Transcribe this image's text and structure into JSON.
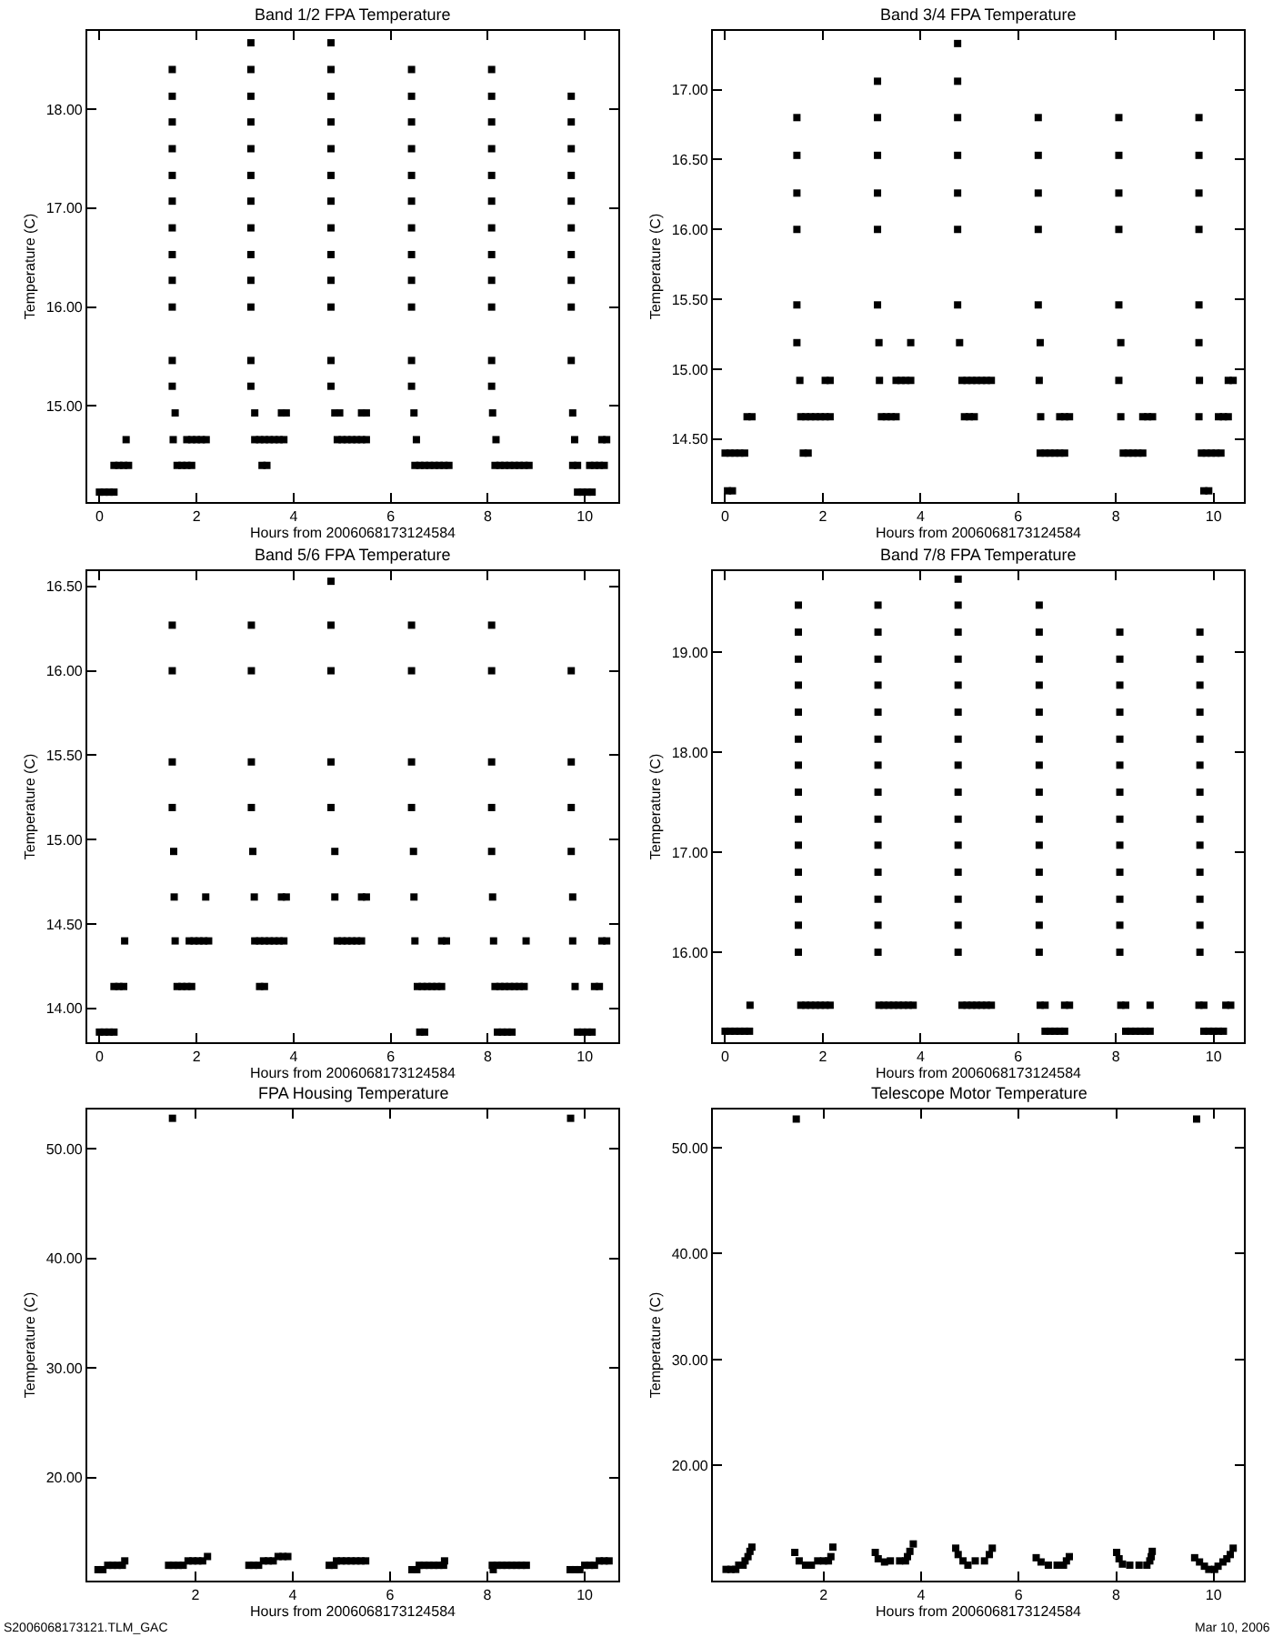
{
  "chart_data": [
    {
      "type": "scatter",
      "title": "Band 1/2 FPA Temperature",
      "xlabel": "Hours from 2006068173124584",
      "ylabel": "Temperature (C)",
      "marker": "square",
      "xlim": [
        -0.25,
        10.69
      ],
      "xticks": [
        0,
        2,
        4,
        6,
        8,
        10
      ],
      "ylim": [
        14.03,
        18.79
      ],
      "yticks": [
        {
          "value": 15,
          "label": "15.00"
        },
        {
          "value": 16,
          "label": "16.00"
        },
        {
          "value": 17,
          "label": "17.00"
        },
        {
          "value": 18,
          "label": "18.00"
        }
      ],
      "series": [
        {
          "color": "#000000",
          "x": [
            0,
            0.1,
            0.2,
            0.3,
            9.85,
            9.95,
            10.05,
            10.15
          ],
          "values": [
            14.13,
            14.13,
            14.13,
            14.13,
            14.13,
            14.13,
            14.13,
            14.13
          ]
        },
        {
          "color": "#000000",
          "x": [
            0.3,
            0.4,
            0.5,
            0.6,
            1.6,
            1.7,
            1.8,
            1.9,
            3.35,
            3.45,
            6.5,
            6.6,
            6.7,
            6.8,
            6.9,
            7.0,
            7.1,
            7.2,
            8.15,
            8.25,
            8.35,
            8.45,
            8.55,
            8.65,
            8.75,
            8.85,
            9.75,
            9.85,
            10.1,
            10.2,
            10.3,
            10.4
          ],
          "values": [
            14.4,
            14.4,
            14.4,
            14.4,
            14.4,
            14.4,
            14.4,
            14.4,
            14.4,
            14.4,
            14.4,
            14.4,
            14.4,
            14.4,
            14.4,
            14.4,
            14.4,
            14.4,
            14.4,
            14.4,
            14.4,
            14.4,
            14.4,
            14.4,
            14.4,
            14.4,
            14.4,
            14.4,
            14.4,
            14.4,
            14.4,
            14.4
          ]
        },
        {
          "color": "#000000",
          "x": [
            0.55,
            1.52,
            1.8,
            1.9,
            2.0,
            2.1,
            2.2,
            3.2,
            3.3,
            3.4,
            3.5,
            3.6,
            3.7,
            3.8,
            4.9,
            5.0,
            5.1,
            5.2,
            5.3,
            5.4,
            5.5,
            6.53,
            8.17,
            9.79,
            10.35,
            10.45
          ],
          "values": [
            14.66,
            14.66,
            14.66,
            14.66,
            14.66,
            14.66,
            14.66,
            14.66,
            14.66,
            14.66,
            14.66,
            14.66,
            14.66,
            14.66,
            14.66,
            14.66,
            14.66,
            14.66,
            14.66,
            14.66,
            14.66,
            14.66,
            14.66,
            14.66,
            14.66,
            14.66
          ]
        },
        {
          "color": "#000000",
          "x": [
            1.56,
            3.2,
            3.75,
            3.85,
            4.85,
            4.95,
            5.4,
            5.5,
            6.48,
            8.1,
            9.75
          ],
          "values": [
            14.93,
            14.93,
            14.93,
            14.93,
            14.93,
            14.93,
            14.93,
            14.93,
            14.93,
            14.93,
            14.93
          ]
        },
        {
          "color": "#000000",
          "x": [
            1.5,
            1.5,
            1.5,
            1.5,
            1.5,
            1.5,
            1.5,
            1.5,
            1.5,
            1.5,
            1.5,
            1.5
          ],
          "values": [
            15.2,
            15.46,
            16.0,
            16.27,
            16.53,
            16.8,
            17.07,
            17.33,
            17.6,
            17.87,
            18.13,
            18.4
          ]
        },
        {
          "color": "#000000",
          "x": [
            3.12,
            3.12,
            3.12,
            3.12,
            3.12,
            3.12,
            3.12,
            3.12,
            3.12,
            3.12,
            3.12,
            3.12,
            3.12
          ],
          "values": [
            15.2,
            15.46,
            16.0,
            16.27,
            16.53,
            16.8,
            17.07,
            17.33,
            17.6,
            17.87,
            18.13,
            18.4,
            18.67
          ]
        },
        {
          "color": "#000000",
          "x": [
            4.77,
            4.77,
            4.77,
            4.77,
            4.77,
            4.77,
            4.77,
            4.77,
            4.77,
            4.77,
            4.77,
            4.77,
            4.77
          ],
          "values": [
            15.2,
            15.46,
            16.0,
            16.27,
            16.53,
            16.8,
            17.07,
            17.33,
            17.6,
            17.87,
            18.13,
            18.4,
            18.67
          ]
        },
        {
          "color": "#000000",
          "x": [
            6.43,
            6.43,
            6.43,
            6.43,
            6.43,
            6.43,
            6.43,
            6.43,
            6.43,
            6.43,
            6.43,
            6.43
          ],
          "values": [
            15.2,
            15.46,
            16.0,
            16.27,
            16.53,
            16.8,
            17.07,
            17.33,
            17.6,
            17.87,
            18.13,
            18.4
          ]
        },
        {
          "color": "#000000",
          "x": [
            8.08,
            8.08,
            8.08,
            8.08,
            8.08,
            8.08,
            8.08,
            8.08,
            8.08,
            8.08,
            8.08,
            8.08
          ],
          "values": [
            15.2,
            15.46,
            16.0,
            16.27,
            16.53,
            16.8,
            17.07,
            17.33,
            17.6,
            17.87,
            18.13,
            18.4
          ]
        },
        {
          "color": "#000000",
          "x": [
            9.72,
            9.72,
            9.72,
            9.72,
            9.72,
            9.72,
            9.72,
            9.72,
            9.72,
            9.72
          ],
          "values": [
            15.46,
            16.0,
            16.27,
            16.53,
            16.8,
            17.07,
            17.33,
            17.6,
            17.87,
            18.13
          ]
        }
      ]
    },
    {
      "type": "scatter",
      "title": "Band 3/4 FPA Temperature",
      "xlabel": "Hours from 2006068173124584",
      "ylabel": "Temperature (C)",
      "marker": "square",
      "xlim": [
        -0.25,
        10.62
      ],
      "xticks": [
        0,
        2,
        4,
        6,
        8,
        10
      ],
      "ylim": [
        14.05,
        17.42
      ],
      "yticks": [
        {
          "value": 14.5,
          "label": "14.50"
        },
        {
          "value": 15,
          "label": "15.00"
        },
        {
          "value": 15.5,
          "label": "15.50"
        },
        {
          "value": 16,
          "label": "16.00"
        },
        {
          "value": 16.5,
          "label": "16.50"
        },
        {
          "value": 17,
          "label": "17.00"
        }
      ],
      "series": [
        {
          "color": "#000000",
          "x": [
            0.05,
            0.15,
            9.8,
            9.9
          ],
          "values": [
            14.13,
            14.13,
            14.13,
            14.13
          ]
        },
        {
          "color": "#000000",
          "x": [
            0,
            0.1,
            0.2,
            0.3,
            0.4,
            1.6,
            1.7,
            6.45,
            6.55,
            6.65,
            6.75,
            6.85,
            6.95,
            8.15,
            8.25,
            8.35,
            8.45,
            8.55,
            9.75,
            9.85,
            9.95,
            10.05,
            10.15
          ],
          "values": [
            14.4,
            14.4,
            14.4,
            14.4,
            14.4,
            14.4,
            14.4,
            14.4,
            14.4,
            14.4,
            14.4,
            14.4,
            14.4,
            14.4,
            14.4,
            14.4,
            14.4,
            14.4,
            14.4,
            14.4,
            14.4,
            14.4,
            14.4
          ]
        },
        {
          "color": "#000000",
          "x": [
            0.45,
            0.55,
            1.55,
            1.65,
            1.75,
            1.85,
            1.95,
            2.05,
            2.15,
            3.2,
            3.3,
            3.4,
            3.5,
            4.9,
            5.0,
            5.1,
            6.46,
            6.85,
            6.95,
            7.05,
            8.1,
            8.55,
            8.65,
            8.75,
            9.7,
            10.1,
            10.2,
            10.3
          ],
          "values": [
            14.66,
            14.66,
            14.66,
            14.66,
            14.66,
            14.66,
            14.66,
            14.66,
            14.66,
            14.66,
            14.66,
            14.66,
            14.66,
            14.66,
            14.66,
            14.66,
            14.66,
            14.66,
            14.66,
            14.66,
            14.66,
            14.66,
            14.66,
            14.66,
            14.66,
            14.66,
            14.66,
            14.66
          ]
        },
        {
          "color": "#000000",
          "x": [
            1.53,
            2.05,
            2.15,
            3.16,
            3.5,
            3.6,
            3.7,
            3.8,
            4.85,
            4.95,
            5.05,
            5.15,
            5.25,
            5.35,
            5.45,
            6.43,
            8.06,
            9.71,
            10.3,
            10.4
          ],
          "values": [
            14.92,
            14.92,
            14.92,
            14.92,
            14.92,
            14.92,
            14.92,
            14.92,
            14.92,
            14.92,
            14.92,
            14.92,
            14.92,
            14.92,
            14.92,
            14.92,
            14.92,
            14.92,
            14.92,
            14.92
          ]
        },
        {
          "color": "#000000",
          "x": [
            1.47,
            3.15,
            3.8,
            4.8,
            6.45,
            8.1,
            9.7
          ],
          "values": [
            15.19,
            15.19,
            15.19,
            15.19,
            15.19,
            15.19,
            15.19
          ]
        },
        {
          "color": "#000000",
          "x": [
            1.47,
            1.47,
            1.47,
            1.47,
            1.47
          ],
          "values": [
            15.46,
            16.0,
            16.26,
            16.53,
            16.8
          ]
        },
        {
          "color": "#000000",
          "x": [
            3.12,
            3.12,
            3.12,
            3.12,
            3.12,
            3.12
          ],
          "values": [
            15.46,
            16.0,
            16.26,
            16.53,
            16.8,
            17.06
          ]
        },
        {
          "color": "#000000",
          "x": [
            4.76,
            4.76,
            4.76,
            4.76,
            4.76,
            4.76,
            4.76
          ],
          "values": [
            15.46,
            16.0,
            16.26,
            16.53,
            16.8,
            17.06,
            17.33
          ]
        },
        {
          "color": "#000000",
          "x": [
            6.41,
            6.41,
            6.41,
            6.41,
            6.41
          ],
          "values": [
            15.46,
            16.0,
            16.26,
            16.53,
            16.8
          ]
        },
        {
          "color": "#000000",
          "x": [
            8.06,
            8.06,
            8.06,
            8.06,
            8.06
          ],
          "values": [
            15.46,
            16.0,
            16.26,
            16.53,
            16.8
          ]
        },
        {
          "color": "#000000",
          "x": [
            9.7,
            9.7,
            9.7,
            9.7,
            9.7
          ],
          "values": [
            15.46,
            16.0,
            16.26,
            16.53,
            16.8
          ]
        }
      ]
    },
    {
      "type": "scatter",
      "title": "Band 5/6 FPA Temperature",
      "xlabel": "Hours from 2006068173124584",
      "ylabel": "Temperature (C)",
      "marker": "square",
      "xlim": [
        -0.25,
        10.69
      ],
      "xticks": [
        0,
        2,
        4,
        6,
        8,
        10
      ],
      "ylim": [
        13.8,
        16.59
      ],
      "yticks": [
        {
          "value": 14,
          "label": "14.00"
        },
        {
          "value": 14.5,
          "label": "14.50"
        },
        {
          "value": 15,
          "label": "15.00"
        },
        {
          "value": 15.5,
          "label": "15.50"
        },
        {
          "value": 16,
          "label": "16.00"
        },
        {
          "value": 16.5,
          "label": "16.50"
        }
      ],
      "series": [
        {
          "color": "#000000",
          "x": [
            0,
            0.1,
            0.2,
            0.3,
            6.6,
            6.7,
            8.2,
            8.3,
            8.4,
            8.5,
            9.85,
            9.95,
            10.05,
            10.15
          ],
          "values": [
            13.86,
            13.86,
            13.86,
            13.86,
            13.86,
            13.86,
            13.86,
            13.86,
            13.86,
            13.86,
            13.86,
            13.86,
            13.86,
            13.86
          ]
        },
        {
          "color": "#000000",
          "x": [
            0.3,
            0.4,
            0.5,
            1.6,
            1.7,
            1.8,
            1.9,
            3.3,
            3.4,
            6.55,
            6.65,
            6.75,
            6.85,
            6.95,
            7.05,
            8.15,
            8.25,
            8.35,
            8.45,
            8.55,
            8.65,
            8.75,
            9.8,
            10.2,
            10.3
          ],
          "values": [
            14.13,
            14.13,
            14.13,
            14.13,
            14.13,
            14.13,
            14.13,
            14.13,
            14.13,
            14.13,
            14.13,
            14.13,
            14.13,
            14.13,
            14.13,
            14.13,
            14.13,
            14.13,
            14.13,
            14.13,
            14.13,
            14.13,
            14.13,
            14.13,
            14.13
          ]
        },
        {
          "color": "#000000",
          "x": [
            0.52,
            1.56,
            1.85,
            1.95,
            2.05,
            2.15,
            2.25,
            3.2,
            3.3,
            3.4,
            3.5,
            3.6,
            3.7,
            3.8,
            4.9,
            5.0,
            5.1,
            5.2,
            5.3,
            5.4,
            6.5,
            7.05,
            7.15,
            8.12,
            8.79,
            9.75,
            10.35,
            10.45
          ],
          "values": [
            14.4,
            14.4,
            14.4,
            14.4,
            14.4,
            14.4,
            14.4,
            14.4,
            14.4,
            14.4,
            14.4,
            14.4,
            14.4,
            14.4,
            14.4,
            14.4,
            14.4,
            14.4,
            14.4,
            14.4,
            14.4,
            14.4,
            14.4,
            14.4,
            14.4,
            14.4,
            14.4,
            14.4
          ]
        },
        {
          "color": "#000000",
          "x": [
            1.54,
            2.19,
            3.19,
            3.75,
            3.85,
            4.85,
            5.4,
            5.5,
            6.48,
            8.1,
            9.75
          ],
          "values": [
            14.66,
            14.66,
            14.66,
            14.66,
            14.66,
            14.66,
            14.66,
            14.66,
            14.66,
            14.66,
            14.66
          ]
        },
        {
          "color": "#000000",
          "x": [
            1.53,
            3.16,
            4.85,
            6.47,
            8.08,
            9.72
          ],
          "values": [
            14.93,
            14.93,
            14.93,
            14.93,
            14.93,
            14.93
          ]
        },
        {
          "color": "#000000",
          "x": [
            1.5,
            1.5,
            1.5,
            1.5
          ],
          "values": [
            15.19,
            15.46,
            16.0,
            16.27
          ]
        },
        {
          "color": "#000000",
          "x": [
            3.13,
            3.13,
            3.13,
            3.13
          ],
          "values": [
            15.19,
            15.46,
            16.0,
            16.27
          ]
        },
        {
          "color": "#000000",
          "x": [
            4.77,
            4.77,
            4.77,
            4.77,
            4.77
          ],
          "values": [
            15.19,
            15.46,
            16.0,
            16.27,
            16.53
          ]
        },
        {
          "color": "#000000",
          "x": [
            6.43,
            6.43,
            6.43,
            6.43
          ],
          "values": [
            15.19,
            15.46,
            16.0,
            16.27
          ]
        },
        {
          "color": "#000000",
          "x": [
            8.08,
            8.08,
            8.08,
            8.08
          ],
          "values": [
            15.19,
            15.46,
            16.0,
            16.27
          ]
        },
        {
          "color": "#000000",
          "x": [
            9.72,
            9.72,
            9.72
          ],
          "values": [
            15.19,
            15.46,
            16.0
          ]
        }
      ]
    },
    {
      "type": "scatter",
      "title": "Band 7/8 FPA Temperature",
      "xlabel": "Hours from 2006068173124584",
      "ylabel": "Temperature (C)",
      "marker": "square",
      "xlim": [
        -0.25,
        10.62
      ],
      "xticks": [
        0,
        2,
        4,
        6,
        8,
        10
      ],
      "ylim": [
        15.1,
        19.81
      ],
      "yticks": [
        {
          "value": 16,
          "label": "16.00"
        },
        {
          "value": 17,
          "label": "17.00"
        },
        {
          "value": 18,
          "label": "18.00"
        },
        {
          "value": 19,
          "label": "19.00"
        }
      ],
      "series": [
        {
          "color": "#000000",
          "x": [
            0,
            0.1,
            0.2,
            0.3,
            0.4,
            0.5,
            6.55,
            6.65,
            6.75,
            6.85,
            6.95,
            8.2,
            8.3,
            8.4,
            8.5,
            8.6,
            8.7,
            9.8,
            9.9,
            10.0,
            10.1,
            10.2
          ],
          "values": [
            15.21,
            15.21,
            15.21,
            15.21,
            15.21,
            15.21,
            15.21,
            15.21,
            15.21,
            15.21,
            15.21,
            15.21,
            15.21,
            15.21,
            15.21,
            15.21,
            15.21,
            15.21,
            15.21,
            15.21,
            15.21,
            15.21
          ]
        },
        {
          "color": "#000000",
          "x": [
            0.51,
            1.55,
            1.65,
            1.75,
            1.85,
            1.95,
            2.05,
            2.15,
            3.15,
            3.25,
            3.35,
            3.45,
            3.55,
            3.65,
            3.75,
            3.85,
            4.85,
            4.95,
            5.05,
            5.15,
            5.25,
            5.35,
            5.45,
            6.45,
            6.55,
            6.95,
            7.05,
            8.1,
            8.2,
            8.7,
            9.7,
            9.8,
            10.25,
            10.35
          ],
          "values": [
            15.47,
            15.47,
            15.47,
            15.47,
            15.47,
            15.47,
            15.47,
            15.47,
            15.47,
            15.47,
            15.47,
            15.47,
            15.47,
            15.47,
            15.47,
            15.47,
            15.47,
            15.47,
            15.47,
            15.47,
            15.47,
            15.47,
            15.47,
            15.47,
            15.47,
            15.47,
            15.47,
            15.47,
            15.47,
            15.47,
            15.47,
            15.47,
            15.47,
            15.47
          ]
        },
        {
          "color": "#000000",
          "x": [
            1.5,
            1.5,
            1.5,
            1.5,
            1.5,
            1.5,
            1.5,
            1.5,
            1.5,
            1.5,
            1.5,
            1.5,
            1.5,
            1.5
          ],
          "values": [
            16.0,
            16.27,
            16.53,
            16.8,
            17.07,
            17.33,
            17.6,
            17.87,
            18.13,
            18.4,
            18.67,
            18.93,
            19.2,
            19.47
          ]
        },
        {
          "color": "#000000",
          "x": [
            3.13,
            3.13,
            3.13,
            3.13,
            3.13,
            3.13,
            3.13,
            3.13,
            3.13,
            3.13,
            3.13,
            3.13,
            3.13,
            3.13
          ],
          "values": [
            16.0,
            16.27,
            16.53,
            16.8,
            17.07,
            17.33,
            17.6,
            17.87,
            18.13,
            18.4,
            18.67,
            18.93,
            19.2,
            19.47
          ]
        },
        {
          "color": "#000000",
          "x": [
            4.77,
            4.77,
            4.77,
            4.77,
            4.77,
            4.77,
            4.77,
            4.77,
            4.77,
            4.77,
            4.77,
            4.77,
            4.77,
            4.77,
            4.77
          ],
          "values": [
            16.0,
            16.27,
            16.53,
            16.8,
            17.07,
            17.33,
            17.6,
            17.87,
            18.13,
            18.4,
            18.67,
            18.93,
            19.2,
            19.47,
            19.73
          ]
        },
        {
          "color": "#000000",
          "x": [
            6.43,
            6.43,
            6.43,
            6.43,
            6.43,
            6.43,
            6.43,
            6.43,
            6.43,
            6.43,
            6.43,
            6.43,
            6.43,
            6.43
          ],
          "values": [
            16.0,
            16.27,
            16.53,
            16.8,
            17.07,
            17.33,
            17.6,
            17.87,
            18.13,
            18.4,
            18.67,
            18.93,
            19.2,
            19.47
          ]
        },
        {
          "color": "#000000",
          "x": [
            8.08,
            8.08,
            8.08,
            8.08,
            8.08,
            8.08,
            8.08,
            8.08,
            8.08,
            8.08,
            8.08,
            8.08,
            8.08
          ],
          "values": [
            16.0,
            16.27,
            16.53,
            16.8,
            17.07,
            17.33,
            17.6,
            17.87,
            18.13,
            18.4,
            18.67,
            18.93,
            19.2
          ]
        },
        {
          "color": "#000000",
          "x": [
            9.72,
            9.72,
            9.72,
            9.72,
            9.72,
            9.72,
            9.72,
            9.72,
            9.72,
            9.72,
            9.72,
            9.72,
            9.72
          ],
          "values": [
            16.0,
            16.27,
            16.53,
            16.8,
            17.07,
            17.33,
            17.6,
            17.87,
            18.13,
            18.4,
            18.67,
            18.93,
            19.2
          ]
        }
      ]
    },
    {
      "type": "scatter",
      "title": "FPA Housing Temperature",
      "xlabel": "Hours from 2006068173124584",
      "ylabel": "Temperature (C)",
      "marker": "square",
      "xlim": [
        -0.22,
        10.69
      ],
      "xticks": [
        2,
        4,
        6,
        8,
        10
      ],
      "ylim": [
        10.6,
        53.6
      ],
      "yticks": [
        {
          "value": 20,
          "label": "20.00"
        },
        {
          "value": 30,
          "label": "30.00"
        },
        {
          "value": 40,
          "label": "40.00"
        },
        {
          "value": 50,
          "label": "50.00"
        }
      ],
      "annotations": [
        "S2006068173121.TLM_GAC"
      ],
      "series": [
        {
          "color": "#000000",
          "x": [
            0,
            0.1,
            6.45,
            6.55,
            8.12,
            9.7,
            9.8,
            9.9
          ],
          "values": [
            11.6,
            11.6,
            11.6,
            11.6,
            11.6,
            11.6,
            11.6,
            11.6
          ]
        },
        {
          "color": "#000000",
          "x": [
            0.2,
            0.3,
            0.4,
            0.5,
            1.45,
            1.55,
            1.65,
            1.75,
            3.1,
            3.2,
            3.3,
            4.75,
            4.85,
            6.6,
            6.7,
            6.8,
            6.9,
            7.0,
            7.1,
            8.1,
            8.2,
            8.3,
            8.4,
            8.5,
            8.6,
            8.7,
            8.8,
            10.0,
            10.1,
            10.2
          ],
          "values": [
            12.0,
            12.0,
            12.0,
            12.0,
            12.0,
            12.0,
            12.0,
            12.0,
            12.0,
            12.0,
            12.0,
            12.0,
            12.0,
            12.0,
            12.0,
            12.0,
            12.0,
            12.0,
            12.0,
            12.0,
            12.0,
            12.0,
            12.0,
            12.0,
            12.0,
            12.0,
            12.0,
            12.0,
            12.0,
            12.0
          ]
        },
        {
          "color": "#000000",
          "x": [
            0.55,
            1.85,
            1.95,
            2.05,
            2.15,
            3.4,
            3.5,
            3.6,
            4.9,
            5.0,
            5.1,
            5.2,
            5.3,
            5.4,
            5.5,
            7.12,
            10.3,
            10.4,
            10.5
          ],
          "values": [
            12.4,
            12.4,
            12.4,
            12.4,
            12.4,
            12.4,
            12.4,
            12.4,
            12.4,
            12.4,
            12.4,
            12.4,
            12.4,
            12.4,
            12.4,
            12.4,
            12.4,
            12.4,
            12.4
          ]
        },
        {
          "color": "#000000",
          "x": [
            2.25,
            3.7,
            3.8,
            3.9
          ],
          "values": [
            12.8,
            12.8,
            12.8,
            12.8
          ]
        },
        {
          "color": "#000000",
          "x": [
            1.53,
            9.71
          ],
          "values": [
            52.8,
            52.8
          ]
        }
      ]
    },
    {
      "type": "scatter",
      "title": "Telescope Motor Temperature",
      "xlabel": "Hours from 2006068173124584",
      "ylabel": "Temperature (C)",
      "marker": "square",
      "xlim": [
        -0.27,
        10.62
      ],
      "xticks": [
        2,
        4,
        6,
        8,
        10
      ],
      "ylim": [
        9.14,
        53.6
      ],
      "yticks": [
        {
          "value": 20,
          "label": "20.00"
        },
        {
          "value": 30,
          "label": "30.00"
        },
        {
          "value": 40,
          "label": "40.00"
        },
        {
          "value": 50,
          "label": "50.00"
        }
      ],
      "annotations": [
        "Mar 10, 2006"
      ],
      "series": [
        {
          "color": "#000000",
          "x": [
            0,
            0.1,
            0.2,
            0.26,
            0.35,
            0.39,
            0.45,
            0.49,
            0.53,
            1.41,
            1.5,
            1.63,
            1.75,
            1.88,
            2.0,
            2.1,
            2.15,
            2.19,
            3.06,
            3.12,
            3.25,
            3.37,
            3.56,
            3.68,
            3.72,
            3.77,
            3.84,
            4.71,
            4.76,
            4.86,
            4.96,
            5.11,
            5.3,
            5.4,
            5.46,
            6.36,
            6.46,
            6.61,
            6.79,
            6.92,
            6.98,
            7.04,
            8.01,
            8.06,
            8.13,
            8.28,
            8.47,
            8.63,
            8.69,
            8.72,
            8.74,
            9.61,
            9.71,
            9.81,
            9.9,
            10.02,
            10.09,
            10.19,
            10.27,
            10.34,
            10.4
          ],
          "values": [
            10.2,
            10.2,
            10.2,
            10.6,
            10.6,
            11.0,
            11.4,
            11.9,
            12.3,
            11.8,
            11.0,
            10.6,
            10.6,
            11.0,
            11.0,
            11.0,
            11.4,
            12.3,
            11.8,
            11.2,
            10.9,
            11.0,
            11.0,
            11.0,
            11.4,
            11.9,
            12.6,
            12.2,
            11.6,
            11.0,
            10.6,
            11.0,
            11.0,
            11.6,
            12.2,
            11.3,
            10.9,
            10.6,
            10.6,
            10.6,
            11.0,
            11.4,
            11.8,
            11.2,
            10.7,
            10.6,
            10.6,
            10.6,
            11.0,
            11.4,
            11.9,
            11.3,
            10.9,
            10.5,
            10.2,
            10.2,
            10.5,
            10.9,
            11.2,
            11.6,
            12.2
          ]
        },
        {
          "color": "#000000",
          "x": [
            1.44,
            9.65
          ],
          "values": [
            52.7,
            52.7
          ]
        }
      ]
    }
  ]
}
